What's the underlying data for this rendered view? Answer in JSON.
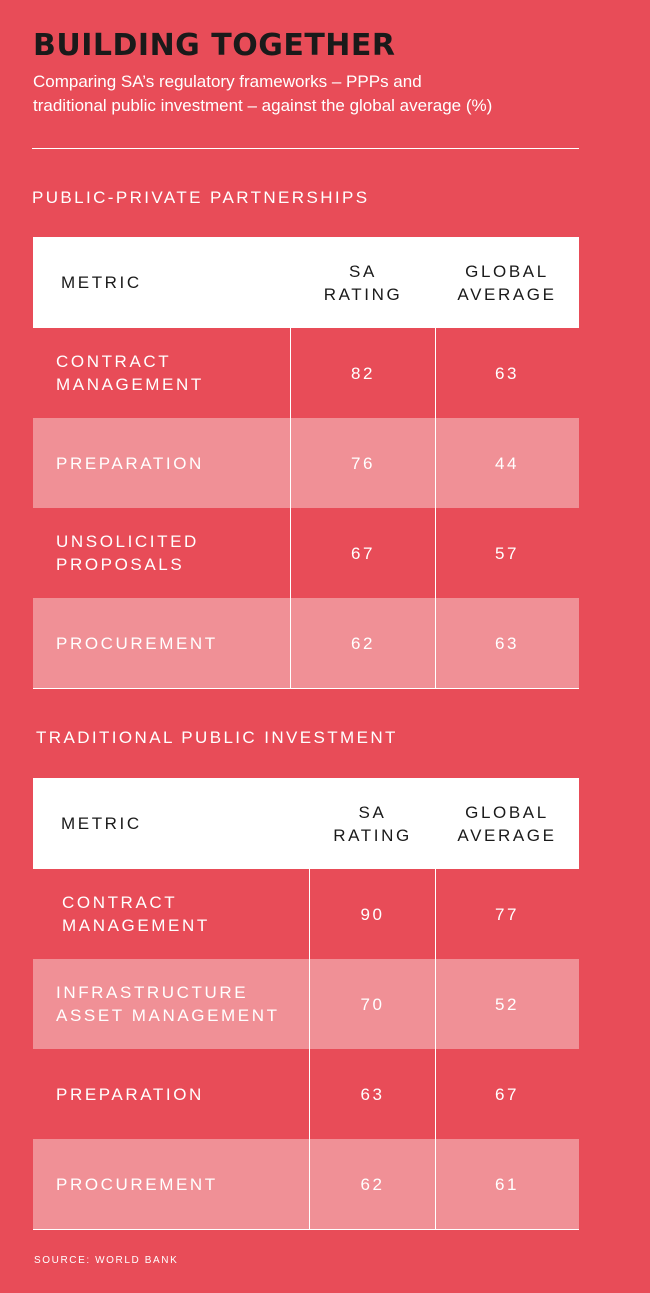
{
  "title": "BUILDING TOGETHER",
  "subtitle_line1": "Comparing SA’s regulatory frameworks – PPPs and",
  "subtitle_line2": "traditional public investment – against the global average (%)",
  "ppp": {
    "heading": "PUBLIC-PRIVATE PARTNERSHIPS",
    "col_metric": "METRIC",
    "col_sa_1": "SA",
    "col_sa_2": "RATING",
    "col_global_1": "GLOBAL",
    "col_global_2": "AVERAGE",
    "rows": [
      {
        "m1": "CONTRACT",
        "m2": "MANAGEMENT",
        "sa": "82",
        "global": "63"
      },
      {
        "m1": "PREPARATION",
        "m2": "",
        "sa": "76",
        "global": "44"
      },
      {
        "m1": "UNSOLICITED",
        "m2": "PROPOSALS",
        "sa": "67",
        "global": "57"
      },
      {
        "m1": "PROCUREMENT",
        "m2": "",
        "sa": "62",
        "global": "63"
      }
    ]
  },
  "tpi": {
    "heading": "TRADITIONAL PUBLIC INVESTMENT",
    "col_metric": "METRIC",
    "col_sa_1": "SA",
    "col_sa_2": "RATING",
    "col_global_1": "GLOBAL",
    "col_global_2": "AVERAGE",
    "rows": [
      {
        "m1": "CONTRACT",
        "m2": "MANAGEMENT",
        "sa": "90",
        "global": "77"
      },
      {
        "m1": "INFRASTRUCTURE",
        "m2": "ASSET MANAGEMENT",
        "sa": "70",
        "global": "52"
      },
      {
        "m1": "PREPARATION",
        "m2": "",
        "sa": "63",
        "global": "67"
      },
      {
        "m1": "PROCUREMENT",
        "m2": "",
        "sa": "62",
        "global": "61"
      }
    ]
  },
  "source": "SOURCE: WORLD BANK"
}
